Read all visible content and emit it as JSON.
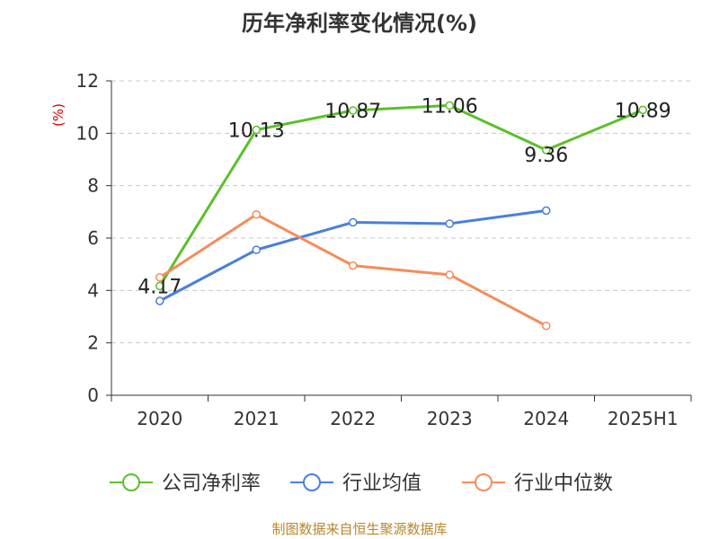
{
  "chart_data": {
    "type": "line",
    "title": "历年净利率变化情况(%)",
    "ylabel": "(%)",
    "categories": [
      "2020",
      "2021",
      "2022",
      "2023",
      "2024",
      "2025H1"
    ],
    "ylim": [
      0,
      12
    ],
    "yticks": [
      "0",
      "2",
      "4",
      "6",
      "8",
      "10",
      "12"
    ],
    "grid": true,
    "legend_position": "bottom",
    "series": [
      {
        "name": "公司净利率",
        "color": "#5cbf29",
        "values": [
          4.17,
          10.13,
          10.87,
          11.06,
          9.36,
          10.89
        ],
        "labels": [
          "4.17",
          "10.13",
          "10.87",
          "11.06",
          "9.36",
          "10.89"
        ]
      },
      {
        "name": "行业均值",
        "color": "#4a7fdb",
        "values": [
          3.6,
          5.55,
          6.6,
          6.55,
          7.05,
          null
        ],
        "labels": []
      },
      {
        "name": "行业中位数",
        "color": "#f58c5a",
        "values": [
          4.5,
          6.9,
          4.95,
          4.6,
          2.65,
          null
        ],
        "labels": []
      }
    ]
  },
  "footer": {
    "source": "制图数据来自恒生聚源数据库"
  }
}
